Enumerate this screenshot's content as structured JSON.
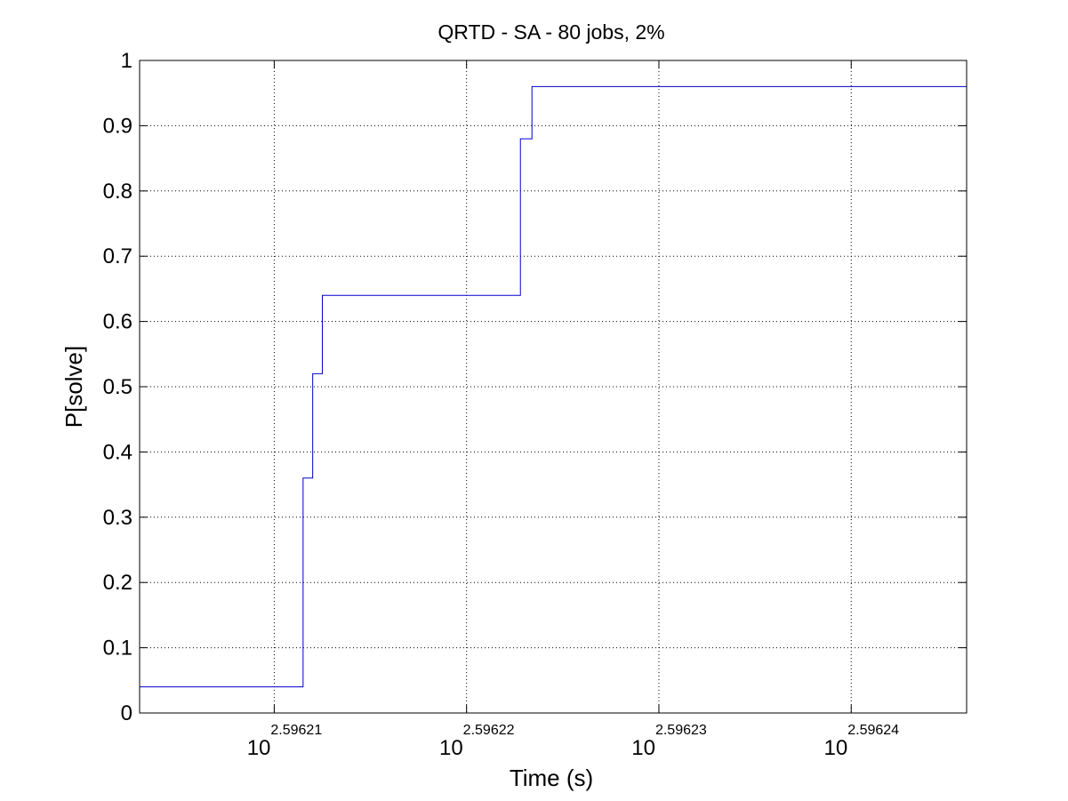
{
  "chart_data": {
    "type": "line",
    "title": "QRTD - SA - 80 jobs, 2%",
    "xlabel": "Time (s)",
    "ylabel": "P[solve]",
    "x_scale": "log",
    "x_base_label": "10",
    "xlim_exponent": [
      2.596203,
      2.596246
    ],
    "ylim": [
      0,
      1
    ],
    "grid": true,
    "x_ticks": [
      {
        "base": "10",
        "exponent": "2.59621",
        "value": 2.59621
      },
      {
        "base": "10",
        "exponent": "2.59622",
        "value": 2.59622
      },
      {
        "base": "10",
        "exponent": "2.59623",
        "value": 2.59623
      },
      {
        "base": "10",
        "exponent": "2.59624",
        "value": 2.59624
      }
    ],
    "y_ticks": [
      "0",
      "0.1",
      "0.2",
      "0.3",
      "0.4",
      "0.5",
      "0.6",
      "0.7",
      "0.8",
      "0.9",
      "1"
    ],
    "series": [
      {
        "color": "#0000cc",
        "step": true,
        "x_exponent": [
          2.596203,
          2.5962115,
          2.596212,
          2.5962125,
          2.5962228,
          2.5962234,
          2.596246
        ],
        "y": [
          0.04,
          0.36,
          0.52,
          0.64,
          0.88,
          0.96,
          0.96
        ]
      }
    ]
  }
}
